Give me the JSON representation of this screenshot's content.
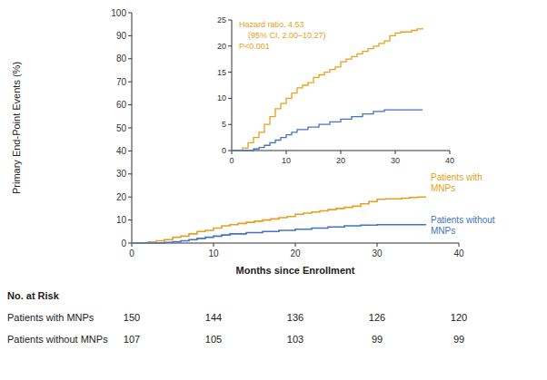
{
  "chart_data": [
    {
      "type": "step",
      "xlabel": "Months since Enrollment",
      "ylabel": "Primary End-Point Events (%)",
      "xlim": [
        0,
        40
      ],
      "ylim": [
        0,
        100
      ],
      "xticks": [
        0,
        10,
        20,
        30,
        40
      ],
      "yticks": [
        0,
        10,
        20,
        30,
        40,
        50,
        60,
        70,
        80,
        90,
        100
      ],
      "series": [
        {
          "name": "Patients with\nMNPs",
          "color": "#E8A020",
          "x": [
            0,
            2,
            3,
            4,
            5,
            6,
            7,
            8,
            9,
            10,
            11,
            12,
            13,
            14,
            15,
            16,
            17,
            18,
            19,
            20,
            21,
            22,
            23,
            24,
            25,
            26,
            27,
            28,
            29,
            30,
            31,
            32,
            33,
            34,
            35,
            36
          ],
          "values": [
            0,
            0.5,
            1.0,
            1.5,
            2.5,
            3.0,
            4.0,
            5.0,
            5.5,
            6.5,
            7.5,
            8.0,
            8.5,
            9.0,
            9.5,
            10.0,
            10.5,
            11.0,
            11.5,
            12.5,
            13.0,
            13.5,
            14.0,
            14.5,
            15.0,
            15.5,
            16.0,
            17.0,
            18.0,
            19.0,
            19.2,
            19.2,
            19.5,
            19.8,
            20.0,
            20.0
          ]
        },
        {
          "name": "Patients without\nMNPs",
          "color": "#4472C4",
          "x": [
            0,
            4,
            5,
            6,
            7,
            8,
            9,
            10,
            11,
            12,
            14,
            16,
            18,
            20,
            22,
            24,
            26,
            28,
            30,
            32,
            33,
            34,
            35,
            36
          ],
          "values": [
            0,
            0.3,
            0.6,
            1.0,
            1.5,
            2.0,
            2.5,
            3.0,
            3.5,
            4.0,
            4.5,
            5.0,
            5.5,
            6.0,
            6.5,
            7.0,
            7.5,
            7.8,
            8.0,
            8.0,
            8.0,
            8.0,
            8.0,
            8.0
          ]
        }
      ],
      "risk_table": {
        "title": "No. at Risk",
        "x": [
          0,
          10,
          20,
          30,
          40
        ],
        "rows": [
          {
            "name": "Patients with MNPs",
            "values": [
              150,
              144,
              136,
              126,
              120
            ]
          },
          {
            "name": "Patients without MNPs",
            "values": [
              107,
              105,
              103,
              99,
              99
            ]
          }
        ]
      }
    },
    {
      "type": "step",
      "xlim": [
        0,
        40
      ],
      "ylim": [
        0,
        25
      ],
      "xticks": [
        0,
        10,
        20,
        30,
        40
      ],
      "yticks": [
        0,
        5,
        10,
        15,
        20,
        25
      ],
      "series": [
        {
          "color": "#E8A020",
          "x": [
            0,
            2,
            3,
            4,
            5,
            6,
            7,
            8,
            9,
            10,
            11,
            12,
            13,
            14,
            15,
            16,
            17,
            18,
            19,
            20,
            21,
            22,
            23,
            24,
            25,
            26,
            27,
            28,
            29,
            30,
            31,
            32,
            33,
            34,
            35
          ],
          "values": [
            0,
            0.5,
            1.5,
            2.5,
            3.5,
            5.0,
            6.5,
            8.0,
            9.0,
            10.0,
            11.0,
            12.0,
            12.5,
            13.0,
            14.0,
            14.5,
            15.0,
            15.5,
            16.0,
            17.0,
            17.5,
            18.0,
            18.5,
            19.0,
            19.5,
            20.0,
            20.5,
            21.0,
            22.0,
            22.5,
            22.7,
            22.7,
            23.0,
            23.3,
            23.5
          ]
        },
        {
          "color": "#4472C4",
          "x": [
            0,
            4,
            5,
            6,
            7,
            8,
            9,
            10,
            11,
            12,
            14,
            16,
            18,
            20,
            22,
            24,
            26,
            28,
            30,
            32,
            33,
            34,
            35
          ],
          "values": [
            0,
            0.3,
            0.6,
            1.0,
            1.5,
            2.0,
            2.5,
            3.0,
            3.5,
            4.0,
            4.5,
            5.0,
            5.5,
            6.0,
            6.5,
            7.0,
            7.5,
            7.8,
            7.8,
            7.8,
            7.8,
            7.8,
            7.8
          ]
        }
      ],
      "annotations": [
        "Hazard ratio, 4.53",
        "(95% CI, 2.00–10.27)",
        "P<0.001"
      ]
    }
  ]
}
